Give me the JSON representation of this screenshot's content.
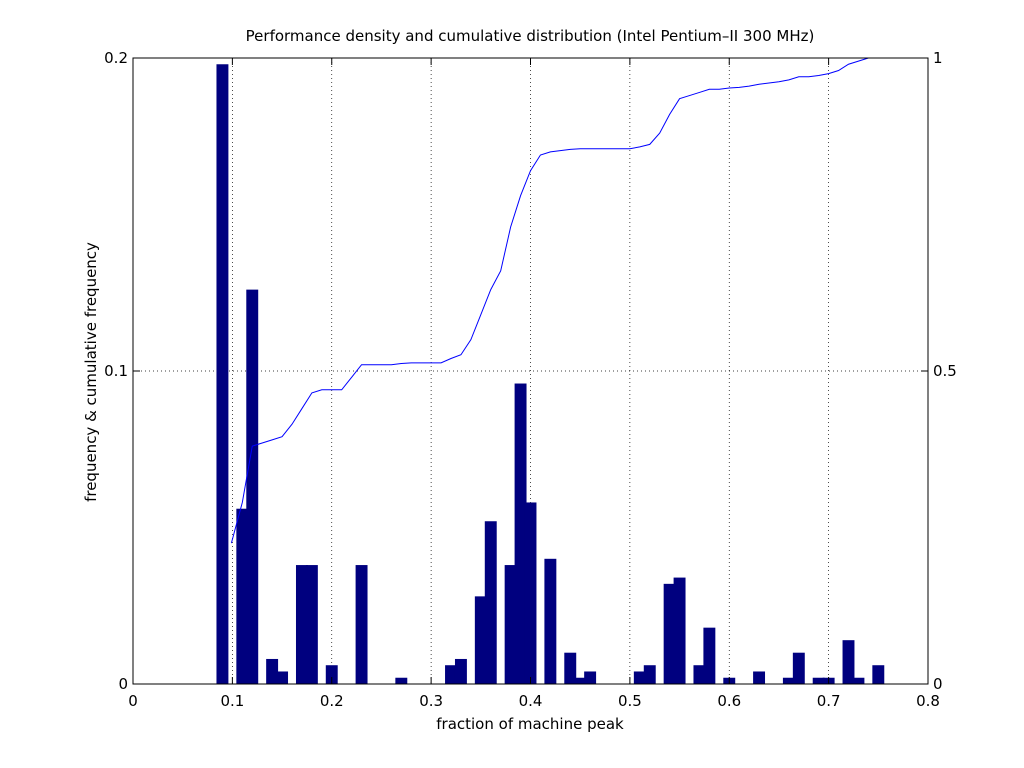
{
  "chart_data": {
    "type": "bar",
    "title": "Performance density and cumulative distribution (Intel Pentium–II 300 MHz)",
    "xlabel": "fraction of machine peak",
    "ylabel": "frequency & cumulative frequency",
    "xlim": [
      0,
      0.8
    ],
    "ylim": [
      0,
      0.2
    ],
    "ylim_right": [
      0,
      1
    ],
    "grid": true,
    "xticks": [
      0,
      0.1,
      0.2,
      0.3,
      0.4,
      0.5,
      0.6,
      0.7,
      0.8
    ],
    "xtick_labels": [
      "0",
      "0.1",
      "0.2",
      "0.3",
      "0.4",
      "0.5",
      "0.6",
      "0.7",
      "0.8"
    ],
    "yticks": [
      0,
      0.1,
      0.2
    ],
    "ytick_labels": [
      "0",
      "0.1",
      "0.2"
    ],
    "yticks_right": [
      0,
      0.5,
      1
    ],
    "ytick_labels_right": [
      "0",
      "0.5",
      "1"
    ],
    "bar_width": 0.01,
    "bar_color": "#00007f",
    "line_color": "#0000ff",
    "series": [
      {
        "type": "bar",
        "x": [
          0.09,
          0.11,
          0.12,
          0.14,
          0.15,
          0.17,
          0.18,
          0.2,
          0.23,
          0.27,
          0.32,
          0.33,
          0.35,
          0.36,
          0.38,
          0.39,
          0.4,
          0.42,
          0.44,
          0.45,
          0.46,
          0.51,
          0.52,
          0.54,
          0.55,
          0.57,
          0.58,
          0.6,
          0.63,
          0.66,
          0.67,
          0.69,
          0.7,
          0.72,
          0.73,
          0.75
        ],
        "values": [
          0.198,
          0.056,
          0.126,
          0.008,
          0.004,
          0.038,
          0.038,
          0.006,
          0.038,
          0.002,
          0.006,
          0.008,
          0.028,
          0.052,
          0.038,
          0.096,
          0.058,
          0.04,
          0.01,
          0.002,
          0.004,
          0.004,
          0.006,
          0.032,
          0.034,
          0.006,
          0.018,
          0.002,
          0.004,
          0.002,
          0.01,
          0.002,
          0.002,
          0.014,
          0.002,
          0.006
        ]
      },
      {
        "type": "line",
        "axis": "right",
        "x": [
          0.099,
          0.11,
          0.12,
          0.13,
          0.14,
          0.15,
          0.16,
          0.17,
          0.18,
          0.19,
          0.2,
          0.21,
          0.22,
          0.23,
          0.24,
          0.25,
          0.26,
          0.27,
          0.28,
          0.29,
          0.3,
          0.31,
          0.32,
          0.33,
          0.34,
          0.35,
          0.36,
          0.37,
          0.38,
          0.39,
          0.4,
          0.41,
          0.42,
          0.43,
          0.44,
          0.45,
          0.46,
          0.47,
          0.48,
          0.49,
          0.5,
          0.51,
          0.52,
          0.53,
          0.54,
          0.55,
          0.56,
          0.57,
          0.58,
          0.59,
          0.6,
          0.61,
          0.62,
          0.63,
          0.64,
          0.65,
          0.66,
          0.67,
          0.68,
          0.69,
          0.7,
          0.71,
          0.72,
          0.73,
          0.74,
          0.75
        ],
        "values": [
          0.225,
          0.29,
          0.38,
          0.385,
          0.39,
          0.395,
          0.415,
          0.44,
          0.465,
          0.47,
          0.47,
          0.47,
          0.49,
          0.51,
          0.51,
          0.51,
          0.51,
          0.512,
          0.513,
          0.513,
          0.513,
          0.513,
          0.52,
          0.526,
          0.55,
          0.59,
          0.63,
          0.66,
          0.73,
          0.78,
          0.82,
          0.845,
          0.85,
          0.852,
          0.854,
          0.855,
          0.855,
          0.855,
          0.855,
          0.855,
          0.855,
          0.858,
          0.862,
          0.88,
          0.91,
          0.935,
          0.94,
          0.945,
          0.95,
          0.95,
          0.952,
          0.953,
          0.955,
          0.958,
          0.96,
          0.962,
          0.965,
          0.97,
          0.97,
          0.972,
          0.975,
          0.98,
          0.99,
          0.995,
          1.0,
          1.0
        ]
      }
    ]
  }
}
